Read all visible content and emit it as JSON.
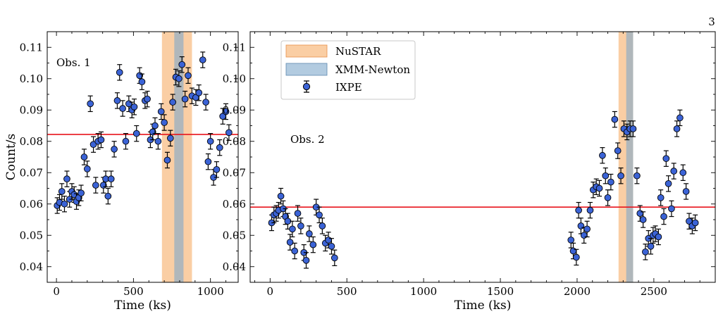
{
  "page_number": "3",
  "chart_data": [
    {
      "type": "scatter",
      "panel_label": "Obs. 1",
      "xlabel": "Time (ks)",
      "ylabel": "Count/s",
      "xlim": [
        -60,
        1180
      ],
      "ylim": [
        0.035,
        0.115
      ],
      "xticks": [
        0,
        500,
        1000
      ],
      "yticks": [
        0.04,
        0.05,
        0.06,
        0.07,
        0.08,
        0.09,
        0.1,
        0.11
      ],
      "ytick_labels": [
        "0.04",
        "0.05",
        "0.06",
        "0.07",
        "0.08",
        "0.09",
        "0.10",
        "0.11"
      ],
      "mean_line": 0.0822,
      "bands": [
        {
          "name": "NuSTAR",
          "x0": 685,
          "x1": 880,
          "color": "#f5a55a"
        },
        {
          "name": "XMM-Newton",
          "x0": 765,
          "x1": 825,
          "color": "#7ea9cb"
        }
      ],
      "series": [
        {
          "name": "IXPE",
          "color": "#3b63d6",
          "err": 0.0025,
          "points": [
            [
              5,
              0.0595
            ],
            [
              20,
              0.0605
            ],
            [
              35,
              0.064
            ],
            [
              52,
              0.06
            ],
            [
              68,
              0.068
            ],
            [
              85,
              0.0615
            ],
            [
              100,
              0.064
            ],
            [
              115,
              0.063
            ],
            [
              130,
              0.0608
            ],
            [
              145,
              0.062
            ],
            [
              160,
              0.0635
            ],
            [
              180,
              0.075
            ],
            [
              200,
              0.0712
            ],
            [
              220,
              0.092
            ],
            [
              240,
              0.079
            ],
            [
              255,
              0.066
            ],
            [
              270,
              0.08
            ],
            [
              290,
              0.0805
            ],
            [
              305,
              0.066
            ],
            [
              320,
              0.068
            ],
            [
              335,
              0.0625
            ],
            [
              355,
              0.068
            ],
            [
              375,
              0.0775
            ],
            [
              395,
              0.093
            ],
            [
              410,
              0.102
            ],
            [
              430,
              0.0905
            ],
            [
              450,
              0.08
            ],
            [
              470,
              0.092
            ],
            [
              490,
              0.09
            ],
            [
              505,
              0.091
            ],
            [
              520,
              0.0825
            ],
            [
              540,
              0.101
            ],
            [
              555,
              0.099
            ],
            [
              575,
              0.093
            ],
            [
              590,
              0.0935
            ],
            [
              610,
              0.0805
            ],
            [
              625,
              0.083
            ],
            [
              640,
              0.085
            ],
            [
              660,
              0.08
            ],
            [
              680,
              0.0895
            ],
            [
              700,
              0.086
            ],
            [
              720,
              0.074
            ],
            [
              740,
              0.081
            ],
            [
              755,
              0.0925
            ],
            [
              775,
              0.1005
            ],
            [
              795,
              0.1
            ],
            [
              815,
              0.1045
            ],
            [
              835,
              0.0935
            ],
            [
              855,
              0.101
            ],
            [
              880,
              0.0945
            ],
            [
              905,
              0.094
            ],
            [
              925,
              0.0955
            ],
            [
              950,
              0.106
            ],
            [
              970,
              0.0925
            ],
            [
              985,
              0.0735
            ],
            [
              1000,
              0.08
            ],
            [
              1020,
              0.0685
            ],
            [
              1040,
              0.071
            ],
            [
              1060,
              0.078
            ],
            [
              1080,
              0.088
            ],
            [
              1100,
              0.0895
            ],
            [
              1120,
              0.0828
            ]
          ]
        }
      ]
    },
    {
      "type": "scatter",
      "panel_label": "Obs. 2",
      "xlabel": "Time (ks)",
      "ylabel": "",
      "xlim": [
        -130,
        2900
      ],
      "ylim": [
        0.035,
        0.115
      ],
      "xticks": [
        0,
        500,
        1000,
        1500,
        2000,
        2500
      ],
      "yticks": [
        0.04,
        0.05,
        0.06,
        0.07,
        0.08,
        0.09,
        0.1,
        0.11
      ],
      "ytick_labels": [
        "0.04",
        "0.05",
        "0.06",
        "0.07",
        "0.08",
        "0.09",
        "0.10",
        "0.11"
      ],
      "mean_line": 0.059,
      "legend_position": "top-left",
      "bands": [
        {
          "name": "NuSTAR",
          "x0": 2270,
          "x1": 2365,
          "color": "#f5a55a"
        },
        {
          "name": "XMM-Newton",
          "x0": 2320,
          "x1": 2365,
          "color": "#7ea9cb"
        }
      ],
      "series": [
        {
          "name": "IXPE",
          "color": "#3b63d6",
          "err": 0.0025,
          "points": [
            [
              10,
              0.054
            ],
            [
              25,
              0.0565
            ],
            [
              40,
              0.057
            ],
            [
              55,
              0.058
            ],
            [
              70,
              0.0625
            ],
            [
              85,
              0.0585
            ],
            [
              100,
              0.056
            ],
            [
              115,
              0.0545
            ],
            [
              130,
              0.0478
            ],
            [
              145,
              0.052
            ],
            [
              160,
              0.045
            ],
            [
              180,
              0.057
            ],
            [
              200,
              0.053
            ],
            [
              220,
              0.0445
            ],
            [
              235,
              0.042
            ],
            [
              255,
              0.0505
            ],
            [
              280,
              0.047
            ],
            [
              300,
              0.059
            ],
            [
              320,
              0.0565
            ],
            [
              340,
              0.053
            ],
            [
              360,
              0.0475
            ],
            [
              380,
              0.0485
            ],
            [
              400,
              0.0465
            ],
            [
              420,
              0.0428
            ],
            [
              1960,
              0.0485
            ],
            [
              1975,
              0.045
            ],
            [
              1995,
              0.043
            ],
            [
              2010,
              0.058
            ],
            [
              2025,
              0.053
            ],
            [
              2045,
              0.05
            ],
            [
              2065,
              0.052
            ],
            [
              2085,
              0.058
            ],
            [
              2105,
              0.0645
            ],
            [
              2125,
              0.0655
            ],
            [
              2145,
              0.065
            ],
            [
              2165,
              0.0755
            ],
            [
              2185,
              0.069
            ],
            [
              2200,
              0.062
            ],
            [
              2220,
              0.067
            ],
            [
              2245,
              0.087
            ],
            [
              2265,
              0.077
            ],
            [
              2285,
              0.069
            ],
            [
              2305,
              0.084
            ],
            [
              2325,
              0.083
            ],
            [
              2345,
              0.084
            ],
            [
              2365,
              0.084
            ],
            [
              2390,
              0.069
            ],
            [
              2410,
              0.057
            ],
            [
              2430,
              0.055
            ],
            [
              2445,
              0.0447
            ],
            [
              2465,
              0.049
            ],
            [
              2480,
              0.0465
            ],
            [
              2495,
              0.05
            ],
            [
              2510,
              0.0505
            ],
            [
              2530,
              0.0495
            ],
            [
              2545,
              0.062
            ],
            [
              2565,
              0.056
            ],
            [
              2580,
              0.0745
            ],
            [
              2595,
              0.0665
            ],
            [
              2615,
              0.0585
            ],
            [
              2630,
              0.0705
            ],
            [
              2650,
              0.084
            ],
            [
              2670,
              0.0875
            ],
            [
              2690,
              0.07
            ],
            [
              2710,
              0.064
            ],
            [
              2730,
              0.0545
            ],
            [
              2750,
              0.053
            ],
            [
              2770,
              0.054
            ]
          ]
        }
      ]
    }
  ],
  "legend": {
    "items": [
      {
        "label": "NuSTAR",
        "kind": "band",
        "color": "#f5a55a"
      },
      {
        "label": "XMM-Newton",
        "kind": "band",
        "color": "#7ea9cb"
      },
      {
        "label": "IXPE",
        "kind": "errorbar",
        "color": "#3b63d6"
      }
    ]
  }
}
